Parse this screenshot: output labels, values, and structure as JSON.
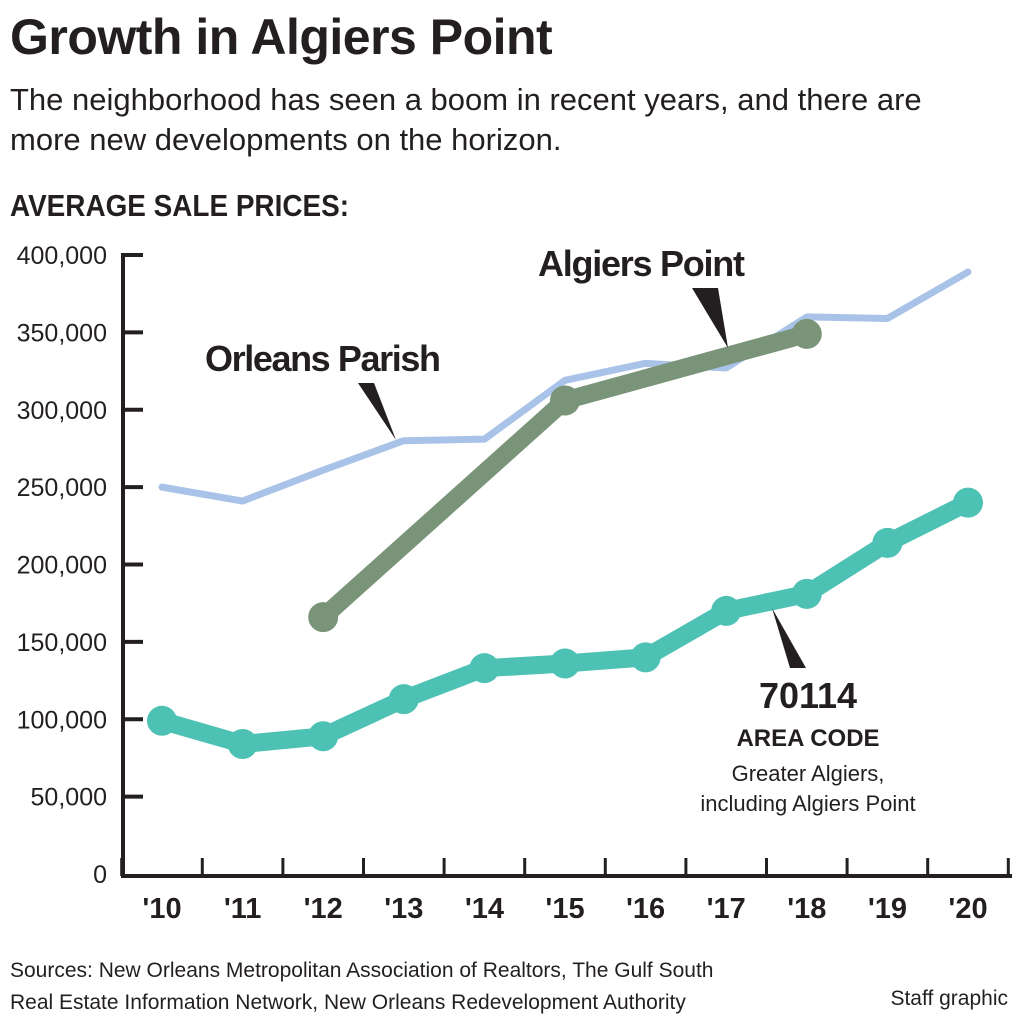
{
  "title": "Growth in Algiers Point",
  "subtitle": "The neighborhood has seen a boom in recent years, and there are more new developments on the horizon.",
  "section_label": "AVERAGE SALE PRICES:",
  "sources": [
    "Sources: New Orleans Metropolitan Association of Realtors, The Gulf South",
    "Real Estate Information Network, New Orleans Redevelopment Authority"
  ],
  "credit": "Staff graphic",
  "chart_data": {
    "type": "line",
    "x": [
      "'10",
      "'11",
      "'12",
      "'13",
      "'14",
      "'15",
      "'16",
      "'17",
      "'18",
      "'19",
      "'20"
    ],
    "ylim": [
      0,
      400000
    ],
    "yticks": [
      "0",
      "50,000",
      "100,000",
      "150,000",
      "200,000",
      "250,000",
      "300,000",
      "350,000",
      "400,000"
    ],
    "grid": false,
    "series": [
      {
        "name": "Orleans Parish",
        "color": "#a9c3e8",
        "markers": false,
        "values": [
          250000,
          241000,
          261000,
          280000,
          281000,
          319000,
          330000,
          327000,
          360000,
          359000,
          389000
        ]
      },
      {
        "name": "Algiers Point",
        "color": "#7a9479",
        "markers": true,
        "values": [
          null,
          null,
          166000,
          null,
          null,
          306000,
          null,
          null,
          349000,
          null,
          null
        ]
      },
      {
        "name": "70114",
        "color": "#4dc1b4",
        "markers": true,
        "values": [
          99000,
          84000,
          89000,
          113000,
          133000,
          136000,
          140000,
          170000,
          181000,
          214000,
          240000
        ]
      }
    ],
    "annotations": {
      "orleans": "Orleans Parish",
      "algiers": "Algiers Point",
      "zip": "70114",
      "zip_sub": "AREA CODE",
      "zip_desc1": "Greater Algiers,",
      "zip_desc2": "including Algiers Point"
    }
  }
}
